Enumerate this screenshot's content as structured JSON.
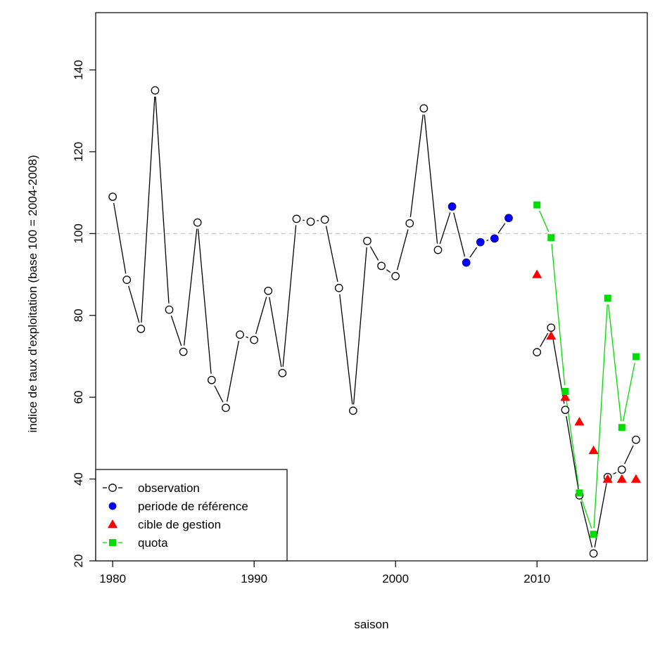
{
  "chart_data": {
    "type": "line",
    "xlabel": "saison",
    "ylabel": "indice de taux d'exploitation (base 100 = 2004-2008)",
    "xlim": [
      1978.8,
      2017.8
    ],
    "ylim": [
      20,
      154
    ],
    "x_ticks": [
      1980,
      1990,
      2000,
      2010
    ],
    "y_ticks": [
      20,
      40,
      60,
      80,
      100,
      120,
      140
    ],
    "reference_line": {
      "y": 100,
      "style": "dashed",
      "color": "#c8c8c8"
    },
    "grid": false,
    "legend_position": "bottom-left",
    "series": [
      {
        "name": "observation",
        "marker": "open-circle",
        "color": "#000000",
        "segments": [
          {
            "x": [
              1980,
              1981,
              1982,
              1983,
              1984,
              1985,
              1986,
              1987,
              1988,
              1989,
              1990,
              1991,
              1992,
              1993,
              1994,
              1995,
              1996,
              1997,
              1998,
              1999,
              2000,
              2001,
              2002,
              2003,
              2004,
              2005,
              2006,
              2007,
              2008
            ],
            "y": [
              109,
              88.7,
              76.7,
              135,
              81.4,
              71.1,
              102.7,
              64.2,
              57.4,
              75.3,
              74,
              86,
              65.9,
              103.6,
              102.9,
              103.4,
              86.7,
              56.7,
              98.2,
              92.1,
              89.6,
              102.5,
              130.6,
              96,
              106.6,
              92.9,
              97.9,
              98.8,
              103.8
            ]
          },
          {
            "x": [
              2010,
              2011,
              2012,
              2013,
              2014,
              2015,
              2016,
              2017
            ],
            "y": [
              71,
              77,
              56.9,
              36,
              21.8,
              40.5,
              42.3,
              49.6
            ]
          }
        ]
      },
      {
        "name": "periode de référence",
        "marker": "filled-circle",
        "color": "#0000ff",
        "x": [
          2004,
          2005,
          2006,
          2007,
          2008
        ],
        "y": [
          106.6,
          92.9,
          97.9,
          98.8,
          103.8
        ]
      },
      {
        "name": "cible de gestion",
        "marker": "filled-triangle",
        "color": "#ff0000",
        "x": [
          2010,
          2011,
          2012,
          2013,
          2014,
          2015,
          2016,
          2017
        ],
        "y": [
          90,
          75,
          60,
          54,
          47,
          40,
          40,
          40
        ]
      },
      {
        "name": "quota",
        "marker": "filled-square",
        "color": "#00dd00",
        "x": [
          2010,
          2011,
          2012,
          2013,
          2014,
          2015,
          2016,
          2017
        ],
        "y": [
          107,
          99,
          61.4,
          36.6,
          26.5,
          84.2,
          52.6,
          69.9
        ]
      }
    ]
  }
}
